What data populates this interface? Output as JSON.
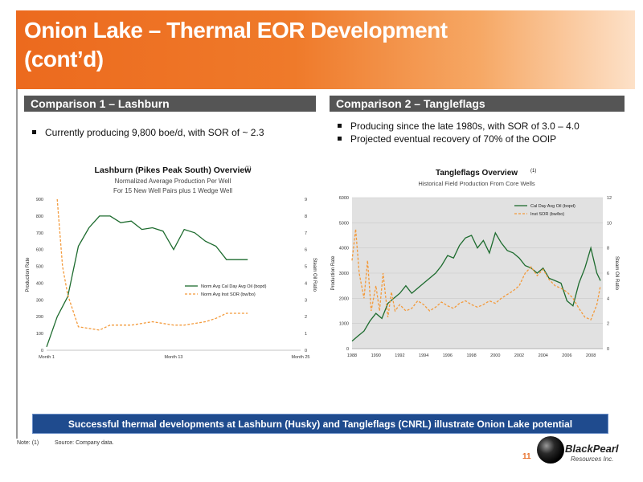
{
  "slide": {
    "title_line1": "Onion Lake – Thermal EOR Development",
    "title_line2": "(cont’d)",
    "banner": "Successful thermal developments at Lashburn (Husky) and Tangleflags (CNRL) illustrate Onion Lake potential",
    "note_label": "Note:",
    "note_marker": "(1)",
    "source": "Source: Company data.",
    "page_number": "11",
    "logo_text1": "BlackPearl",
    "logo_text2": "Resources Inc."
  },
  "left": {
    "heading": "Comparison 1 – Lashburn",
    "bullets": [
      "Currently producing 9,800 boe/d, with SOR of ~ 2.3"
    ]
  },
  "right": {
    "heading": "Comparison 2 – Tangleflags",
    "bullets": [
      "Producing since the late 1980s, with SOR of 3.0 – 4.0",
      "Projected eventual recovery of 70% of the OOIP"
    ]
  },
  "colors": {
    "orange": "#ec6a1e",
    "heading_bg": "#555555",
    "banner_bg": "#1f4b8e",
    "oil": "#1d6b2e",
    "sor": "#f39a3b"
  },
  "chart_data": [
    {
      "type": "line",
      "title": "Lashburn (Pikes Peak South) Overview",
      "title_marker": "(1)",
      "subtitle1": "Normalized Average Production Per Well",
      "subtitle2": "For 15 New Well Pairs plus 1 Wedge Well",
      "ylabel": "Production Rate",
      "y2label": "Steam Oil Ratio",
      "ylim": [
        0,
        900
      ],
      "y2lim": [
        0,
        9
      ],
      "yticks": [
        "0",
        "100",
        "200",
        "300",
        "400",
        "500",
        "600",
        "700",
        "800",
        "900"
      ],
      "y2ticks": [
        "0",
        "1",
        "2",
        "3",
        "4",
        "5",
        "6",
        "7",
        "8",
        "9"
      ],
      "xlim": [
        1,
        25
      ],
      "xticks": [
        {
          "v": 1,
          "label": "Month 1"
        },
        {
          "v": 13,
          "label": "Month 13"
        },
        {
          "v": 25,
          "label": "Month 25"
        }
      ],
      "legend_position": "center-right",
      "series": [
        {
          "name": "Norm Avg Cal Day Avg Oil (bopd)",
          "axis": "left",
          "x": [
            1,
            2,
            3,
            4,
            5,
            6,
            7,
            8,
            9,
            10,
            11,
            12,
            13,
            14,
            15,
            16,
            17,
            18,
            19,
            20
          ],
          "values": [
            20,
            200,
            320,
            620,
            730,
            800,
            800,
            760,
            770,
            720,
            730,
            710,
            600,
            720,
            700,
            650,
            620,
            540,
            540,
            540
          ]
        },
        {
          "name": "Norm Avg Inst SOR (bw/bo)",
          "axis": "right",
          "x": [
            2,
            2.5,
            3,
            4,
            5,
            6,
            7,
            8,
            9,
            10,
            11,
            12,
            13,
            14,
            15,
            16,
            17,
            18,
            19,
            20
          ],
          "values": [
            9,
            5,
            3.3,
            1.4,
            1.3,
            1.2,
            1.5,
            1.5,
            1.5,
            1.6,
            1.7,
            1.6,
            1.5,
            1.5,
            1.6,
            1.7,
            1.9,
            2.2,
            2.2,
            2.2
          ]
        }
      ]
    },
    {
      "type": "line",
      "title": "Tangleflags Overview",
      "title_marker": "(1)",
      "subtitle1": "Historical Field Production From Core Wells",
      "ylabel": "Production Rate",
      "y2label": "Steam Oil Ratio",
      "ylim": [
        0,
        6000
      ],
      "y2lim": [
        0,
        12
      ],
      "yticks": [
        "0",
        "1000",
        "2000",
        "3000",
        "4000",
        "5000",
        "6000"
      ],
      "y2ticks": [
        "0",
        "2",
        "4",
        "6",
        "8",
        "10",
        "12"
      ],
      "xlim": [
        1988,
        2009
      ],
      "xticks": [
        {
          "v": 1988,
          "label": "1988"
        },
        {
          "v": 1990,
          "label": "1990"
        },
        {
          "v": 1992,
          "label": "1992"
        },
        {
          "v": 1994,
          "label": "1994"
        },
        {
          "v": 1996,
          "label": "1996"
        },
        {
          "v": 1998,
          "label": "1998"
        },
        {
          "v": 2000,
          "label": "2000"
        },
        {
          "v": 2002,
          "label": "2002"
        },
        {
          "v": 2004,
          "label": "2004"
        },
        {
          "v": 2006,
          "label": "2006"
        },
        {
          "v": 2008,
          "label": "2008"
        }
      ],
      "legend_position": "top-right",
      "series": [
        {
          "name": "Cal Day Avg Oil (bopd)",
          "axis": "left",
          "x": [
            1988,
            1988.5,
            1989,
            1989.5,
            1990,
            1990.5,
            1991,
            1991.5,
            1992,
            1992.5,
            1993,
            1993.5,
            1994,
            1994.5,
            1995,
            1995.5,
            1996,
            1996.5,
            1997,
            1997.5,
            1998,
            1998.5,
            1999,
            1999.5,
            2000,
            2000.5,
            2001,
            2001.5,
            2002,
            2002.5,
            2003,
            2003.5,
            2004,
            2004.5,
            2005,
            2005.5,
            2006,
            2006.5,
            2007,
            2007.5,
            2008,
            2008.5,
            2008.8
          ],
          "values": [
            300,
            500,
            700,
            1100,
            1400,
            1200,
            1800,
            2000,
            2200,
            2500,
            2200,
            2400,
            2600,
            2800,
            3000,
            3300,
            3700,
            3600,
            4100,
            4400,
            4500,
            4000,
            4300,
            3800,
            4600,
            4200,
            3900,
            3800,
            3600,
            3300,
            3200,
            3000,
            3200,
            2800,
            2700,
            2600,
            1900,
            1700,
            2600,
            3200,
            4000,
            3000,
            2700
          ]
        },
        {
          "name": "Inst SOR (bw/bo)",
          "axis": "right",
          "x": [
            1988,
            1988.3,
            1988.6,
            1989,
            1989.3,
            1989.6,
            1990,
            1990.3,
            1990.6,
            1991,
            1991.3,
            1991.6,
            1992,
            1992.5,
            1993,
            1993.5,
            1994,
            1994.5,
            1995,
            1995.5,
            1996,
            1996.5,
            1997,
            1997.5,
            1998,
            1998.5,
            1999,
            1999.5,
            2000,
            2000.5,
            2001,
            2001.5,
            2002,
            2002.5,
            2003,
            2003.5,
            2004,
            2004.5,
            2005,
            2005.5,
            2006,
            2006.5,
            2007,
            2007.5,
            2008,
            2008.5,
            2008.8
          ],
          "values": [
            7,
            9.5,
            6,
            4,
            7,
            3,
            5,
            3,
            6,
            2.5,
            4.5,
            3,
            3.5,
            3,
            3.2,
            3.8,
            3.5,
            3,
            3.3,
            3.7,
            3.4,
            3.2,
            3.6,
            3.8,
            3.5,
            3.3,
            3.5,
            3.8,
            3.6,
            4,
            4.3,
            4.6,
            5,
            6,
            6.5,
            5.8,
            6.3,
            5.5,
            5,
            4.8,
            4.5,
            4,
            3.2,
            2.5,
            2.3,
            3.5,
            5
          ]
        }
      ]
    }
  ]
}
